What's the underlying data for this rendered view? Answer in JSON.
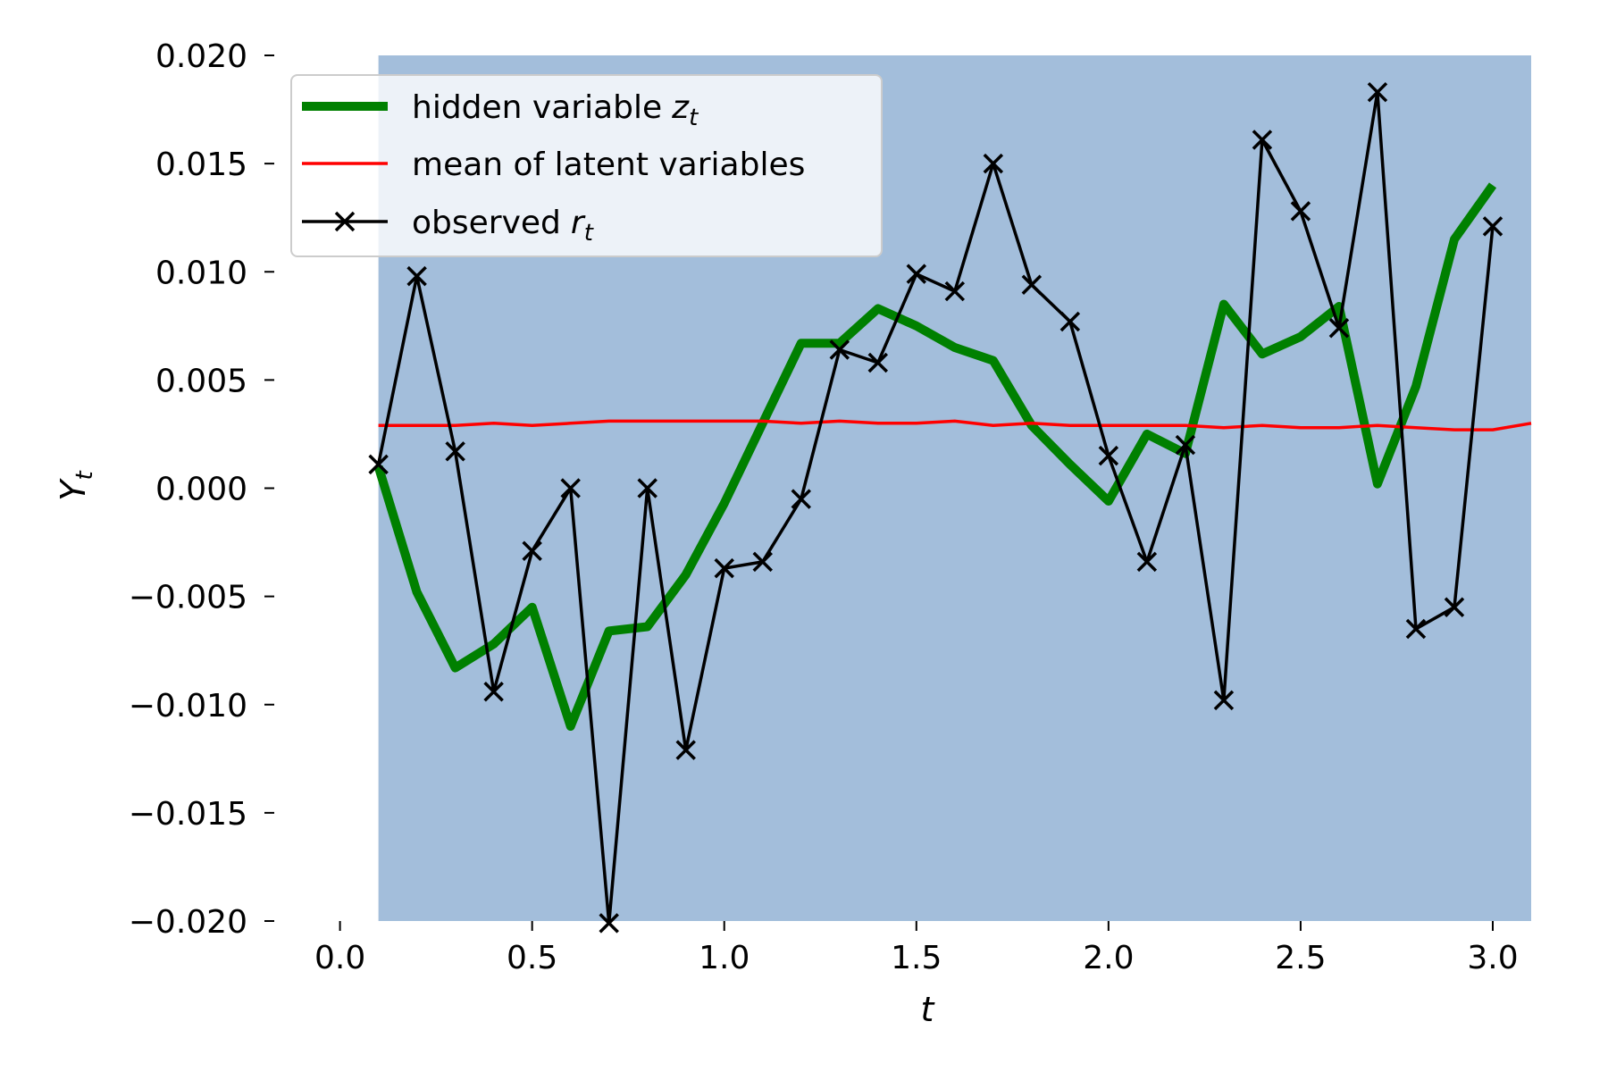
{
  "chart_data": {
    "type": "line",
    "xlabel": "t",
    "ylabel": {
      "base": "Y",
      "sub": "t"
    },
    "xlim": [
      -0.02,
      3.1
    ],
    "ylim": [
      -0.02,
      0.02
    ],
    "xticks": [
      {
        "value": 0.0,
        "label": "0.0"
      },
      {
        "value": 0.5,
        "label": "0.5"
      },
      {
        "value": 1.0,
        "label": "1.0"
      },
      {
        "value": 1.5,
        "label": "1.5"
      },
      {
        "value": 2.0,
        "label": "2.0"
      },
      {
        "value": 2.5,
        "label": "2.5"
      },
      {
        "value": 3.0,
        "label": "3.0"
      }
    ],
    "yticks": [
      {
        "value": 0.02,
        "label": "0.020"
      },
      {
        "value": 0.015,
        "label": "0.015"
      },
      {
        "value": 0.01,
        "label": "0.010"
      },
      {
        "value": 0.005,
        "label": "0.005"
      },
      {
        "value": 0.0,
        "label": "0.000"
      },
      {
        "value": -0.005,
        "label": "−0.005"
      },
      {
        "value": -0.01,
        "label": "−0.010"
      },
      {
        "value": -0.015,
        "label": "−0.015"
      },
      {
        "value": -0.02,
        "label": "−0.020"
      }
    ],
    "band": {
      "x_start": 0.1,
      "x_end": 3.1,
      "y_low": -0.02,
      "y_high": 0.02,
      "color": "#a3bedb"
    },
    "grid": false,
    "legend_position": "top-left",
    "series": [
      {
        "name": "hidden variable",
        "name_sub": "t",
        "name_var": "z",
        "color": "#008000",
        "style": "thick-line",
        "x": [
          0.1,
          0.2,
          0.3,
          0.4,
          0.5,
          0.6,
          0.7,
          0.8,
          0.9,
          1.0,
          1.1,
          1.2,
          1.3,
          1.4,
          1.5,
          1.6,
          1.7,
          1.8,
          1.9,
          2.0,
          2.1,
          2.2,
          2.3,
          2.4,
          2.5,
          2.6,
          2.7,
          2.8,
          2.9,
          3.0
        ],
        "y": [
          0.001,
          -0.0048,
          -0.0083,
          -0.0072,
          -0.0055,
          -0.011,
          -0.0066,
          -0.0064,
          -0.004,
          -0.0007,
          0.003,
          0.0067,
          0.0067,
          0.0083,
          0.0075,
          0.0065,
          0.0059,
          0.0029,
          0.0011,
          -0.0006,
          0.0025,
          0.0016,
          0.0085,
          0.0062,
          0.007,
          0.0084,
          0.0002,
          0.0047,
          0.0115,
          0.014
        ]
      },
      {
        "name": "mean of latent variables",
        "color": "#ff0000",
        "style": "line",
        "x": [
          0.1,
          0.2,
          0.3,
          0.4,
          0.5,
          0.6,
          0.7,
          0.8,
          0.9,
          1.0,
          1.1,
          1.2,
          1.3,
          1.4,
          1.5,
          1.6,
          1.7,
          1.8,
          1.9,
          2.0,
          2.1,
          2.2,
          2.3,
          2.4,
          2.5,
          2.6,
          2.7,
          2.8,
          2.9,
          3.0,
          3.1
        ],
        "y": [
          0.0029,
          0.0029,
          0.0029,
          0.003,
          0.0029,
          0.003,
          0.0031,
          0.0031,
          0.0031,
          0.0031,
          0.0031,
          0.003,
          0.0031,
          0.003,
          0.003,
          0.0031,
          0.0029,
          0.003,
          0.0029,
          0.0029,
          0.0029,
          0.0029,
          0.0028,
          0.0029,
          0.0028,
          0.0028,
          0.0029,
          0.0028,
          0.0027,
          0.0027,
          0.003
        ]
      },
      {
        "name": "observed",
        "name_sub": "t",
        "name_var": "r",
        "color": "#000000",
        "style": "line-x-markers",
        "x": [
          0.1,
          0.2,
          0.3,
          0.4,
          0.5,
          0.6,
          0.7,
          0.8,
          0.9,
          1.0,
          1.1,
          1.2,
          1.3,
          1.4,
          1.5,
          1.6,
          1.7,
          1.8,
          1.9,
          2.0,
          2.1,
          2.2,
          2.3,
          2.4,
          2.5,
          2.6,
          2.7,
          2.8,
          2.9,
          3.0
        ],
        "y": [
          0.0011,
          0.0098,
          0.0017,
          -0.0094,
          -0.0029,
          0.0,
          -0.0201,
          0.0,
          -0.0121,
          -0.0037,
          -0.0034,
          -0.0005,
          0.0064,
          0.0058,
          0.0099,
          0.0091,
          0.015,
          0.0094,
          0.0077,
          0.0015,
          -0.0034,
          0.002,
          -0.0098,
          0.0161,
          0.0128,
          0.0074,
          0.0183,
          -0.0065,
          -0.0055,
          0.0121
        ]
      }
    ]
  }
}
